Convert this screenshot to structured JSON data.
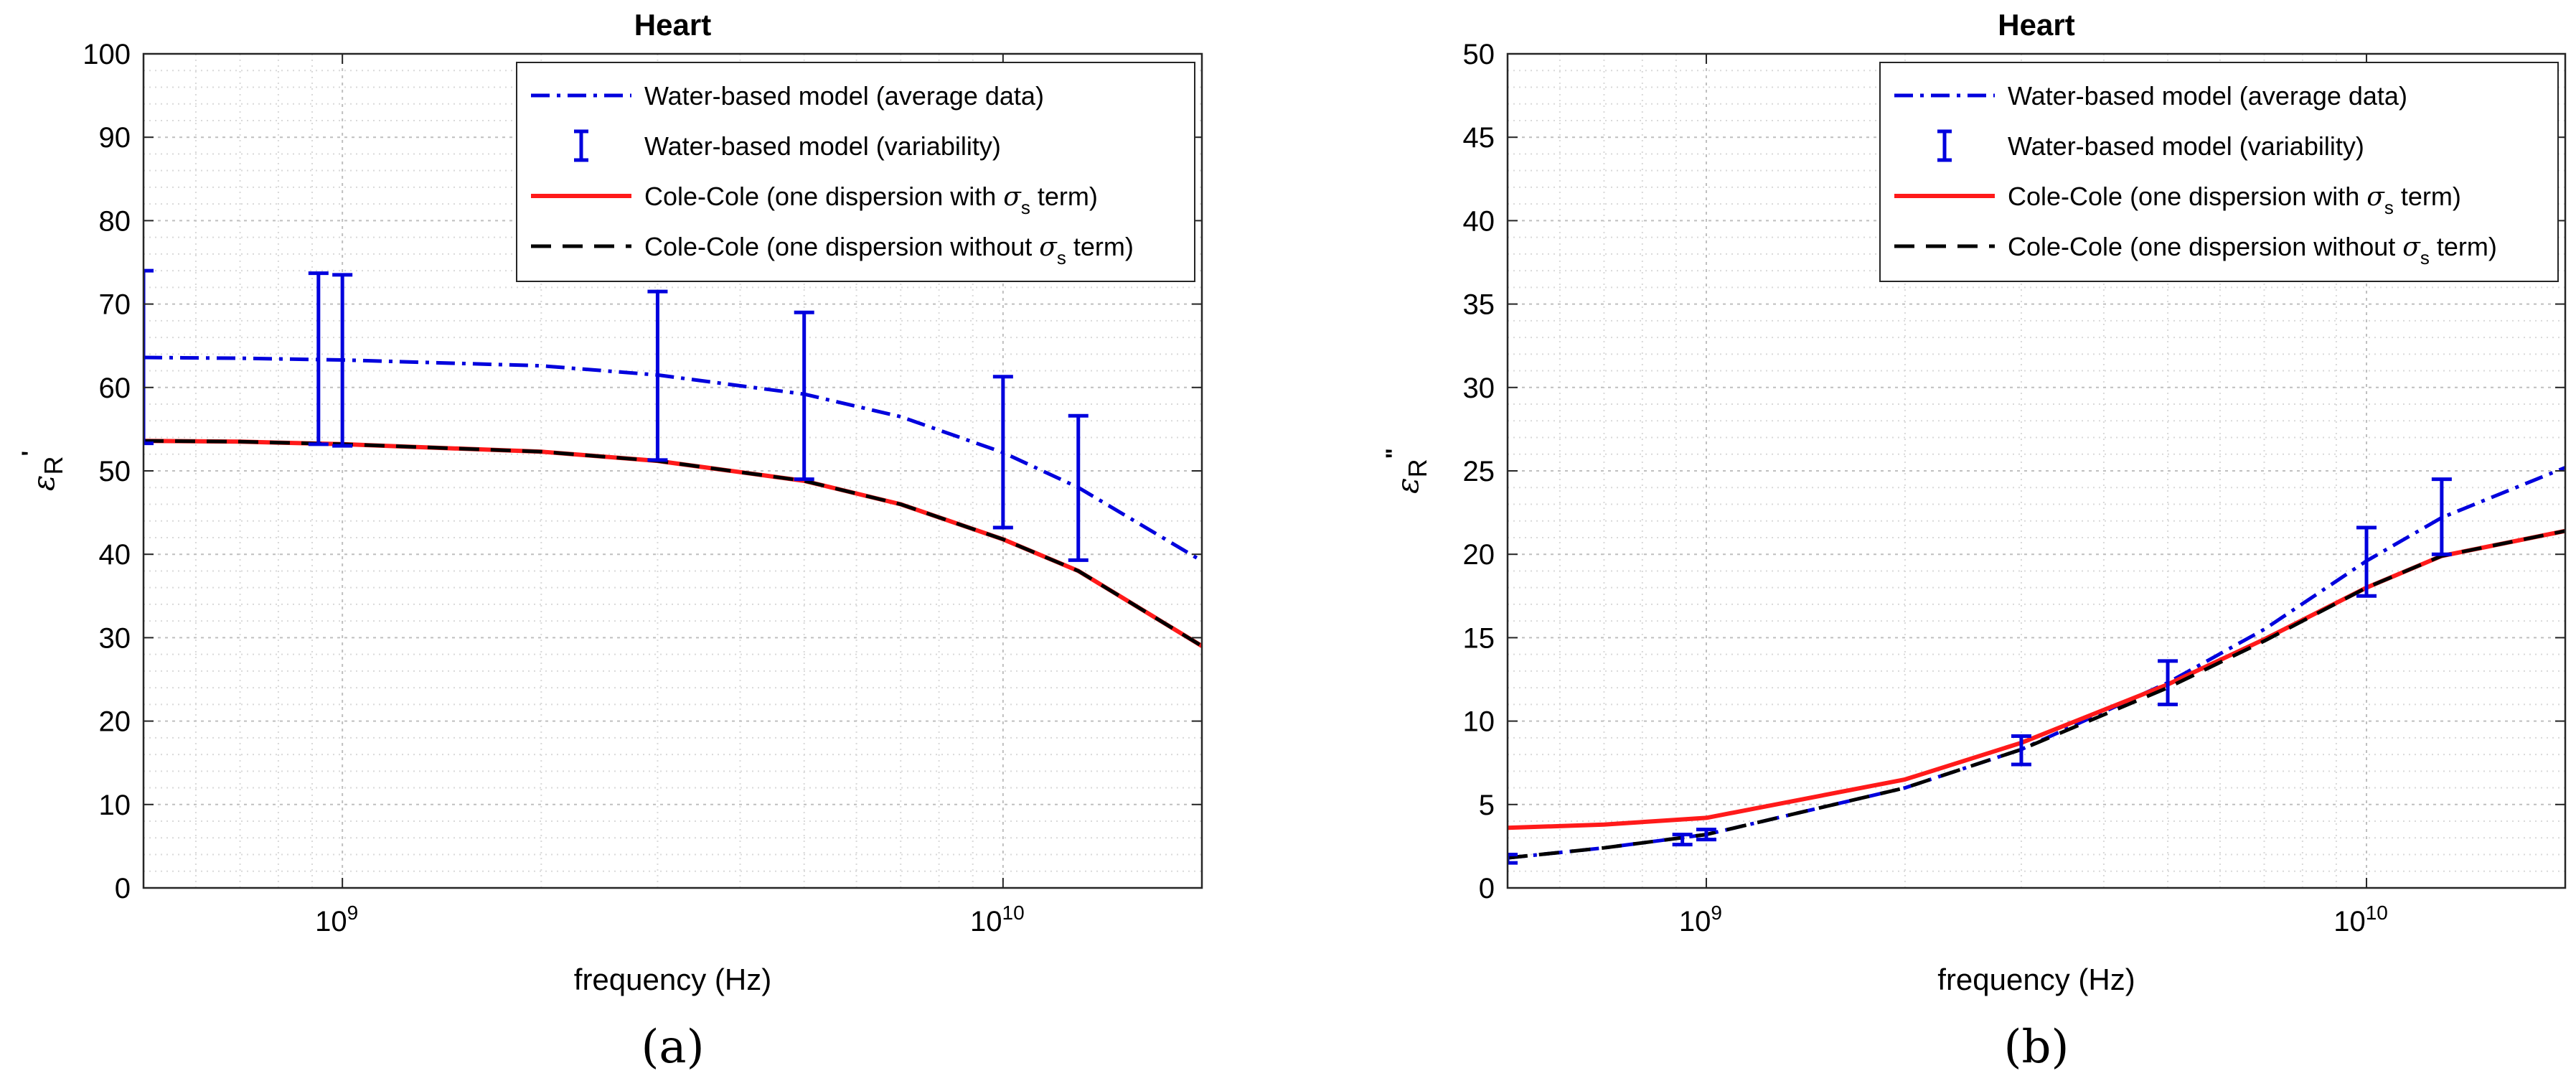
{
  "colors": {
    "water": "#0000dd",
    "cole_with": "#ff1a1a",
    "cole_without": "#000000"
  },
  "chart_data": [
    {
      "type": "line",
      "panel_label": "(a)",
      "title": "Heart",
      "xlabel": "frequency (Hz)",
      "ylabel_base": "ε",
      "ylabel_sub": "R",
      "ylabel_sup": "'",
      "xscale": "log",
      "xlim": [
        500000000.0,
        20000000000.0
      ],
      "ylim": [
        0,
        100
      ],
      "yticks": [
        0,
        10,
        20,
        30,
        40,
        50,
        60,
        70,
        80,
        90,
        100
      ],
      "xticks": [
        {
          "value": 1000000000.0,
          "base": "10",
          "exp": "9"
        },
        {
          "value": 10000000000.0,
          "base": "10",
          "exp": "10"
        }
      ],
      "grid": true,
      "legend_position": "top-right",
      "legend": [
        {
          "style": "dashdot",
          "label": "Water-based model (average data)"
        },
        {
          "style": "errorbar",
          "label": "Water-based model (variability)"
        },
        {
          "style": "solid-red",
          "label_pre": "Cole-Cole (one dispersion with ",
          "sym": "σ",
          "sub": "s",
          "label_post": " term)"
        },
        {
          "style": "dashed-black",
          "label_pre": "Cole-Cole (one dispersion without ",
          "sym": "σ",
          "sub": "s",
          "label_post": " term)"
        }
      ],
      "series": [
        {
          "name": "Water-based model (average data)",
          "style": "dashdot",
          "x": [
            500000000.0,
            700000000.0,
            1000000000.0,
            2000000000.0,
            3000000000.0,
            5000000000.0,
            7000000000.0,
            10000000000.0,
            13000000000.0,
            20000000000.0
          ],
          "y": [
            63.6,
            63.5,
            63.3,
            62.6,
            61.5,
            59.2,
            56.5,
            52.2,
            48.0,
            39.2
          ]
        },
        {
          "name": "Cole-Cole (one dispersion with σs term)",
          "style": "solid-red",
          "x": [
            500000000.0,
            700000000.0,
            1000000000.0,
            2000000000.0,
            3000000000.0,
            5000000000.0,
            7000000000.0,
            10000000000.0,
            13000000000.0,
            20000000000.0
          ],
          "y": [
            53.6,
            53.5,
            53.2,
            52.3,
            51.2,
            48.8,
            46.0,
            41.8,
            38.0,
            29.0
          ]
        },
        {
          "name": "Cole-Cole (one dispersion without σs term)",
          "style": "dashed-black",
          "x": [
            500000000.0,
            700000000.0,
            1000000000.0,
            2000000000.0,
            3000000000.0,
            5000000000.0,
            7000000000.0,
            10000000000.0,
            13000000000.0,
            20000000000.0
          ],
          "y": [
            53.6,
            53.5,
            53.2,
            52.3,
            51.2,
            48.8,
            46.0,
            41.8,
            38.0,
            29.0
          ]
        }
      ],
      "errorbars": [
        {
          "x": 500000000.0,
          "low": 53.3,
          "high": 74.0
        },
        {
          "x": 920000000.0,
          "low": 53.2,
          "high": 73.7
        },
        {
          "x": 1000000000.0,
          "low": 53.0,
          "high": 73.5
        },
        {
          "x": 3000000000.0,
          "low": 51.3,
          "high": 71.5
        },
        {
          "x": 5000000000.0,
          "low": 49.0,
          "high": 69.0
        },
        {
          "x": 10000000000.0,
          "low": 43.2,
          "high": 61.3
        },
        {
          "x": 13000000000.0,
          "low": 39.3,
          "high": 56.6
        }
      ]
    },
    {
      "type": "line",
      "panel_label": "(b)",
      "title": "Heart",
      "xlabel": "frequency (Hz)",
      "ylabel_base": "ε",
      "ylabel_sub": "R",
      "ylabel_sup": "\"",
      "xscale": "log",
      "xlim": [
        500000000.0,
        20000000000.0
      ],
      "ylim": [
        0,
        50
      ],
      "yticks": [
        0,
        5,
        10,
        15,
        20,
        25,
        30,
        35,
        40,
        45,
        50
      ],
      "xticks": [
        {
          "value": 1000000000.0,
          "base": "10",
          "exp": "9"
        },
        {
          "value": 10000000000.0,
          "base": "10",
          "exp": "10"
        }
      ],
      "grid": true,
      "legend_position": "top-right",
      "legend": [
        {
          "style": "dashdot",
          "label": "Water-based model (average data)"
        },
        {
          "style": "errorbar",
          "label": "Water-based model (variability)"
        },
        {
          "style": "solid-red",
          "label_pre": "Cole-Cole (one dispersion with ",
          "sym": "σ",
          "sub": "s",
          "label_post": " term)"
        },
        {
          "style": "dashed-black",
          "label_pre": "Cole-Cole (one dispersion without ",
          "sym": "σ",
          "sub": "s",
          "label_post": " term)"
        }
      ],
      "series": [
        {
          "name": "Water-based model (average data)",
          "style": "dashdot",
          "x": [
            500000000.0,
            700000000.0,
            1000000000.0,
            2000000000.0,
            3000000000.0,
            5000000000.0,
            7000000000.0,
            10000000000.0,
            13000000000.0,
            20000000000.0
          ],
          "y": [
            1.8,
            2.4,
            3.2,
            6.0,
            8.3,
            12.3,
            15.5,
            19.6,
            22.2,
            25.2
          ]
        },
        {
          "name": "Cole-Cole (one dispersion with σs term)",
          "style": "solid-red",
          "x": [
            500000000.0,
            700000000.0,
            1000000000.0,
            2000000000.0,
            3000000000.0,
            5000000000.0,
            7000000000.0,
            10000000000.0,
            13000000000.0,
            20000000000.0
          ],
          "y": [
            3.6,
            3.8,
            4.2,
            6.5,
            8.7,
            12.2,
            14.9,
            18.0,
            19.9,
            21.4
          ]
        },
        {
          "name": "Cole-Cole (one dispersion without σs term)",
          "style": "dashed-black",
          "x": [
            500000000.0,
            700000000.0,
            1000000000.0,
            2000000000.0,
            3000000000.0,
            5000000000.0,
            7000000000.0,
            10000000000.0,
            13000000000.0,
            20000000000.0
          ],
          "y": [
            1.8,
            2.4,
            3.2,
            6.0,
            8.3,
            12.0,
            14.8,
            18.0,
            19.9,
            21.4
          ]
        }
      ],
      "errorbars": [
        {
          "x": 500000000.0,
          "low": 1.5,
          "high": 2.0
        },
        {
          "x": 920000000.0,
          "low": 2.6,
          "high": 3.2
        },
        {
          "x": 1000000000.0,
          "low": 2.9,
          "high": 3.5
        },
        {
          "x": 3000000000.0,
          "low": 7.4,
          "high": 9.1
        },
        {
          "x": 5000000000.0,
          "low": 11.0,
          "high": 13.6
        },
        {
          "x": 10000000000.0,
          "low": 17.5,
          "high": 21.6
        },
        {
          "x": 13000000000.0,
          "low": 20.0,
          "high": 24.5
        }
      ]
    }
  ]
}
